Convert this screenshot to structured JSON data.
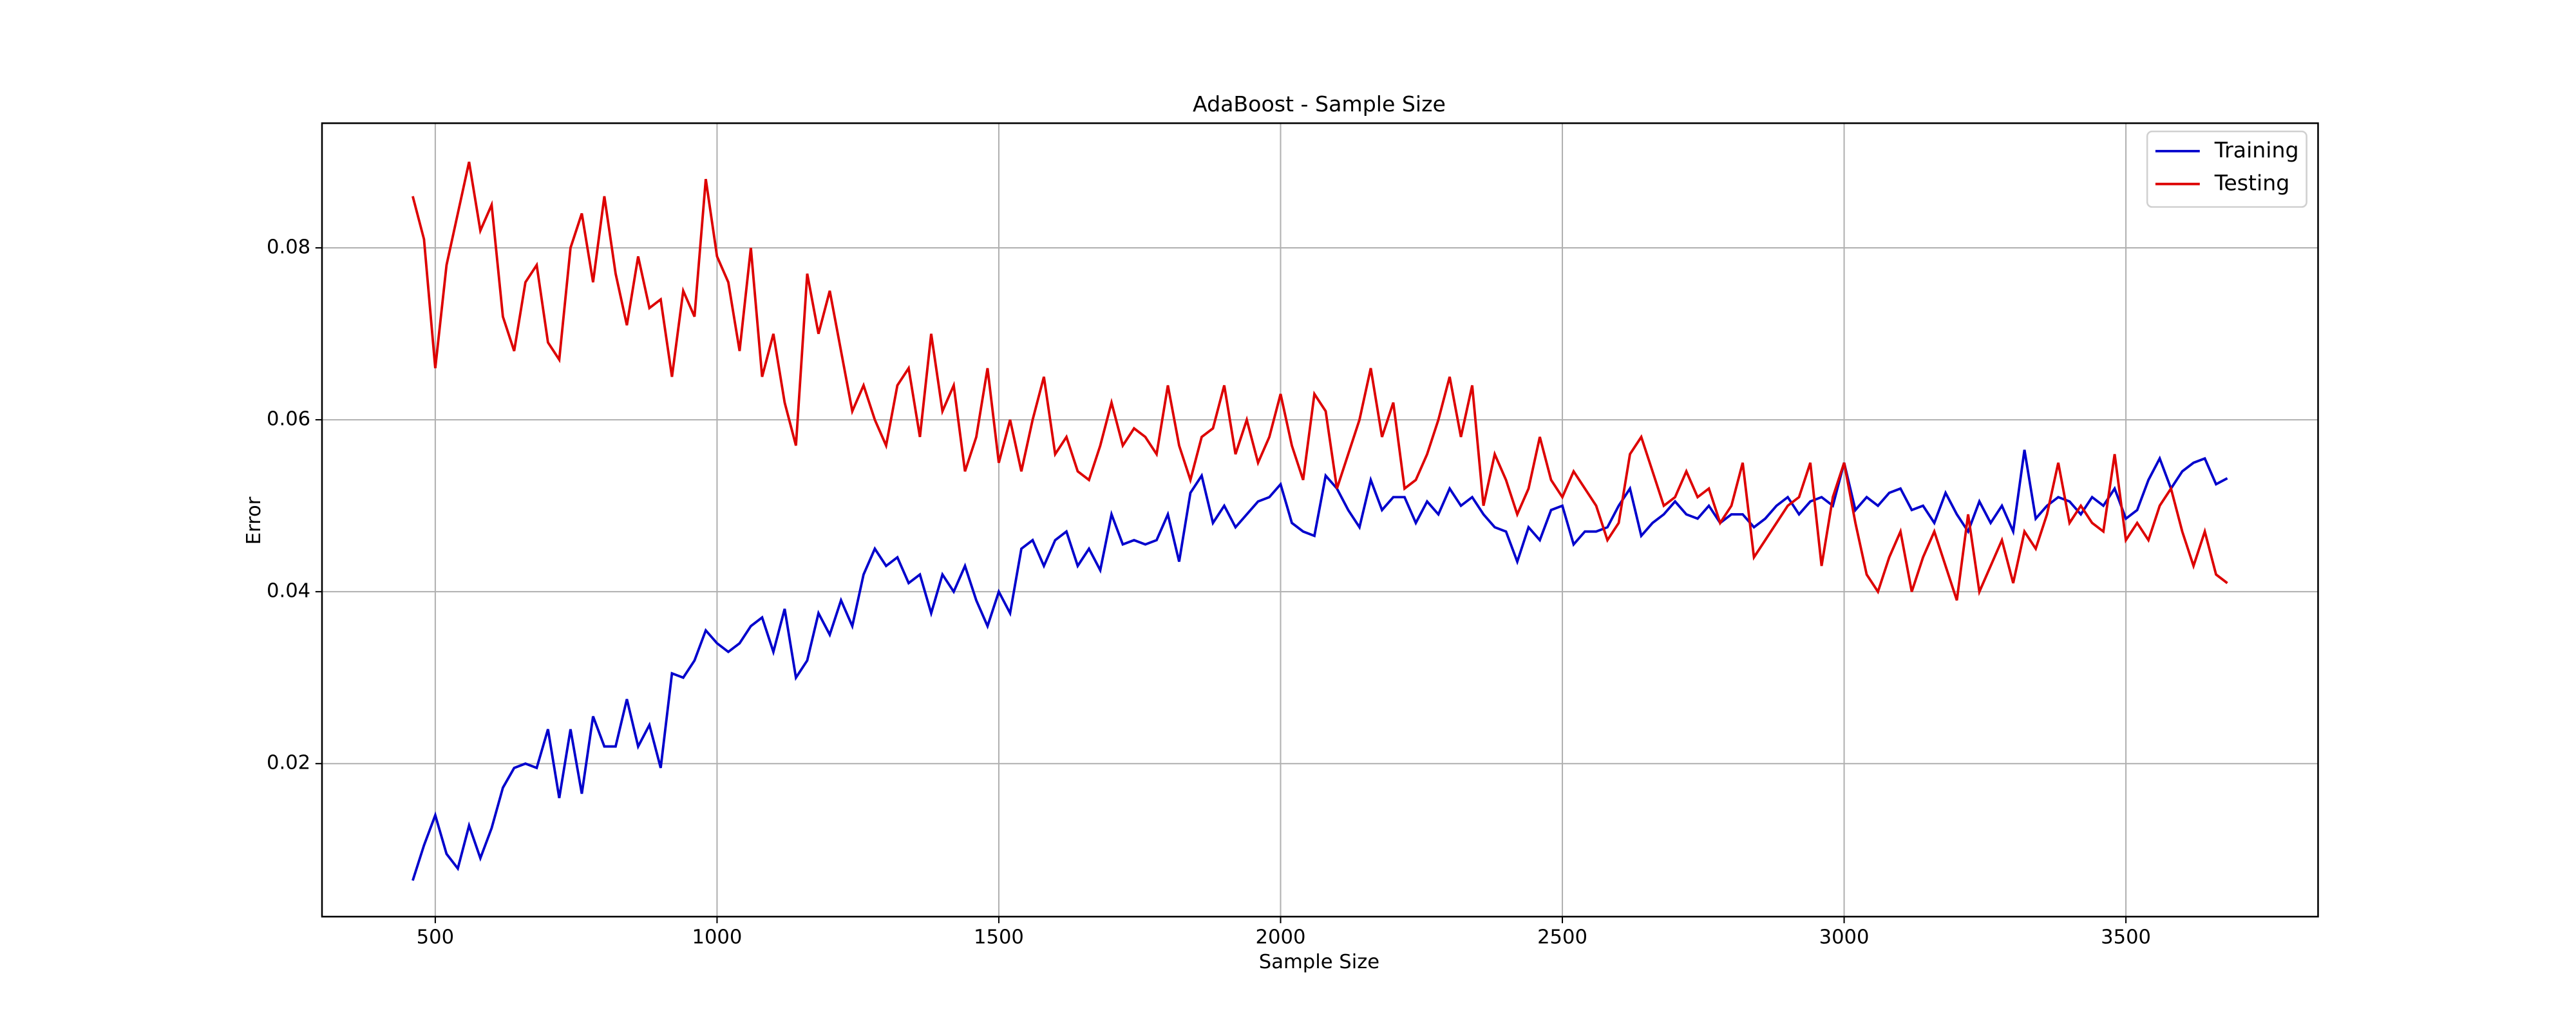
{
  "chart_data": {
    "type": "line",
    "title": "AdaBoost - Sample Size",
    "xlabel": "Sample Size",
    "ylabel": "Error",
    "x": [
      460,
      480,
      500,
      520,
      540,
      560,
      580,
      600,
      620,
      640,
      660,
      680,
      700,
      720,
      740,
      760,
      780,
      800,
      820,
      840,
      860,
      880,
      900,
      920,
      940,
      960,
      980,
      1000,
      1020,
      1040,
      1060,
      1080,
      1100,
      1120,
      1140,
      1160,
      1180,
      1200,
      1220,
      1240,
      1260,
      1280,
      1300,
      1320,
      1340,
      1360,
      1380,
      1400,
      1420,
      1440,
      1460,
      1480,
      1500,
      1520,
      1540,
      1560,
      1580,
      1600,
      1620,
      1640,
      1660,
      1680,
      1700,
      1720,
      1740,
      1760,
      1780,
      1800,
      1820,
      1840,
      1860,
      1880,
      1900,
      1920,
      1940,
      1960,
      1980,
      2000,
      2020,
      2040,
      2060,
      2080,
      2100,
      2120,
      2140,
      2160,
      2180,
      2200,
      2220,
      2240,
      2260,
      2280,
      2300,
      2320,
      2340,
      2360,
      2380,
      2400,
      2420,
      2440,
      2460,
      2480,
      2500,
      2520,
      2540,
      2560,
      2580,
      2600,
      2620,
      2640,
      2660,
      2680,
      2700,
      2720,
      2740,
      2760,
      2780,
      2800,
      2820,
      2840,
      2860,
      2880,
      2900,
      2920,
      2940,
      2960,
      2980,
      3000,
      3020,
      3040,
      3060,
      3080,
      3100,
      3120,
      3140,
      3160,
      3180,
      3200,
      3220,
      3240,
      3260,
      3280,
      3300,
      3320,
      3340,
      3360,
      3380,
      3400,
      3420,
      3440,
      3460,
      3480,
      3500,
      3520,
      3540,
      3560,
      3580,
      3600,
      3620,
      3640,
      3660,
      3680
    ],
    "series": [
      {
        "name": "Training",
        "color": "#0000cc",
        "values": [
          0.0064,
          0.0105,
          0.014,
          0.0095,
          0.0078,
          0.0128,
          0.009,
          0.0125,
          0.0172,
          0.0195,
          0.02,
          0.0195,
          0.024,
          0.016,
          0.024,
          0.0165,
          0.0255,
          0.022,
          0.022,
          0.0275,
          0.022,
          0.0245,
          0.0195,
          0.0305,
          0.03,
          0.032,
          0.0355,
          0.034,
          0.033,
          0.034,
          0.036,
          0.037,
          0.033,
          0.038,
          0.03,
          0.032,
          0.0375,
          0.035,
          0.039,
          0.036,
          0.042,
          0.045,
          0.043,
          0.044,
          0.041,
          0.042,
          0.0375,
          0.042,
          0.04,
          0.043,
          0.039,
          0.036,
          0.04,
          0.0375,
          0.045,
          0.046,
          0.043,
          0.046,
          0.047,
          0.043,
          0.045,
          0.0425,
          0.049,
          0.0455,
          0.046,
          0.0455,
          0.046,
          0.049,
          0.0435,
          0.0515,
          0.0535,
          0.048,
          0.05,
          0.0475,
          0.049,
          0.0505,
          0.051,
          0.0525,
          0.048,
          0.047,
          0.0465,
          0.0535,
          0.052,
          0.0495,
          0.0475,
          0.053,
          0.0495,
          0.051,
          0.051,
          0.048,
          0.0505,
          0.049,
          0.052,
          0.05,
          0.051,
          0.049,
          0.0475,
          0.047,
          0.0435,
          0.0475,
          0.046,
          0.0495,
          0.05,
          0.0455,
          0.047,
          0.047,
          0.0475,
          0.05,
          0.052,
          0.0465,
          0.048,
          0.049,
          0.0505,
          0.049,
          0.0485,
          0.05,
          0.048,
          0.049,
          0.049,
          0.0475,
          0.0485,
          0.05,
          0.051,
          0.049,
          0.0505,
          0.051,
          0.05,
          0.055,
          0.0495,
          0.051,
          0.05,
          0.0515,
          0.052,
          0.0495,
          0.05,
          0.048,
          0.0515,
          0.049,
          0.047,
          0.0505,
          0.048,
          0.05,
          0.047,
          0.0565,
          0.0485,
          0.05,
          0.051,
          0.0505,
          0.049,
          0.051,
          0.05,
          0.052,
          0.0485,
          0.0495,
          0.053,
          0.0555,
          0.052,
          0.054,
          0.055,
          0.0555,
          0.0525,
          0.0532
        ]
      },
      {
        "name": "Testing",
        "color": "#dd0000",
        "values": [
          0.086,
          0.081,
          0.066,
          0.078,
          0.084,
          0.09,
          0.082,
          0.085,
          0.072,
          0.068,
          0.076,
          0.078,
          0.069,
          0.067,
          0.08,
          0.084,
          0.076,
          0.086,
          0.077,
          0.071,
          0.079,
          0.073,
          0.074,
          0.065,
          0.075,
          0.072,
          0.088,
          0.079,
          0.076,
          0.068,
          0.08,
          0.065,
          0.07,
          0.062,
          0.057,
          0.077,
          0.07,
          0.075,
          0.068,
          0.061,
          0.064,
          0.06,
          0.057,
          0.064,
          0.066,
          0.058,
          0.07,
          0.061,
          0.064,
          0.054,
          0.058,
          0.066,
          0.055,
          0.06,
          0.054,
          0.06,
          0.065,
          0.056,
          0.058,
          0.054,
          0.053,
          0.057,
          0.062,
          0.057,
          0.059,
          0.058,
          0.056,
          0.064,
          0.057,
          0.053,
          0.058,
          0.059,
          0.064,
          0.056,
          0.06,
          0.055,
          0.058,
          0.063,
          0.057,
          0.053,
          0.063,
          0.061,
          0.052,
          0.056,
          0.06,
          0.066,
          0.058,
          0.062,
          0.052,
          0.053,
          0.056,
          0.06,
          0.065,
          0.058,
          0.064,
          0.05,
          0.056,
          0.053,
          0.049,
          0.052,
          0.058,
          0.053,
          0.051,
          0.054,
          0.052,
          0.05,
          0.046,
          0.048,
          0.056,
          0.058,
          0.054,
          0.05,
          0.051,
          0.054,
          0.051,
          0.052,
          0.048,
          0.05,
          0.055,
          0.044,
          0.046,
          0.048,
          0.05,
          0.051,
          0.055,
          0.043,
          0.051,
          0.055,
          0.048,
          0.042,
          0.04,
          0.044,
          0.047,
          0.04,
          0.044,
          0.047,
          0.043,
          0.039,
          0.049,
          0.04,
          0.043,
          0.046,
          0.041,
          0.047,
          0.045,
          0.049,
          0.055,
          0.048,
          0.05,
          0.048,
          0.047,
          0.056,
          0.046,
          0.048,
          0.046,
          0.05,
          0.052,
          0.047,
          0.043,
          0.047,
          0.042,
          0.041
        ]
      }
    ],
    "xlim": [
      299,
      3841
    ],
    "ylim": [
      0.0022,
      0.0945
    ],
    "xticks": [
      500,
      1000,
      1500,
      2000,
      2500,
      3000,
      3500
    ],
    "yticks": [
      0.02,
      0.04,
      0.06,
      0.08
    ],
    "grid": true,
    "legend": "upper right"
  }
}
